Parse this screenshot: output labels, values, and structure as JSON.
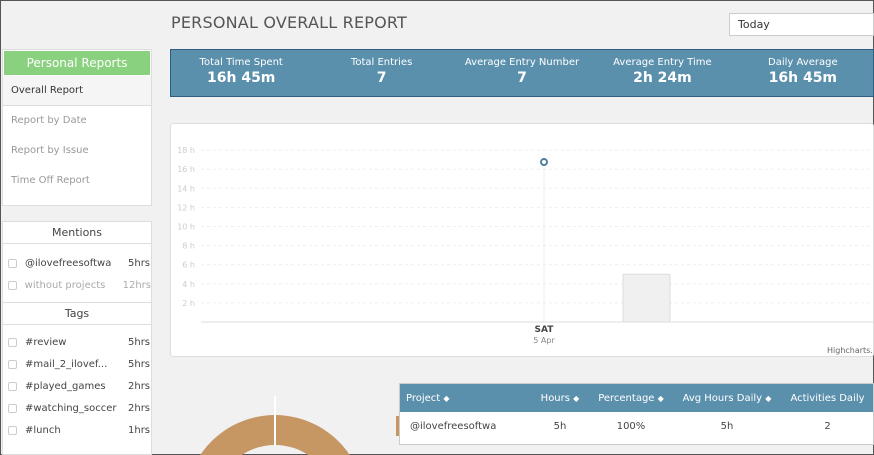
{
  "header": {
    "title": "PERSONAL OVERALL REPORT",
    "date_select": "Today"
  },
  "sidebar": {
    "heading": "Personal Reports",
    "items": [
      {
        "label": "Overall Report",
        "active": true
      },
      {
        "label": "Report by Date"
      },
      {
        "label": "Report by Issue"
      },
      {
        "label": "Time Off Report"
      }
    ]
  },
  "mentions": {
    "heading": "Mentions",
    "items": [
      {
        "label": "@ilovefreesoftwa",
        "hours": "5hrs"
      },
      {
        "label": "without projects",
        "hours": "12hrs"
      }
    ]
  },
  "tags": {
    "heading": "Tags",
    "items": [
      {
        "label": "#review",
        "hours": "5hrs"
      },
      {
        "label": "#mail_2_ilovef...",
        "hours": "5hrs"
      },
      {
        "label": "#played_games",
        "hours": "2hrs"
      },
      {
        "label": "#watching_soccer",
        "hours": "2hrs"
      },
      {
        "label": "#lunch",
        "hours": "1hrs"
      }
    ]
  },
  "stats": [
    {
      "label": "Total Time Spent",
      "value": "16h 45m"
    },
    {
      "label": "Total Entries",
      "value": "7"
    },
    {
      "label": "Average Entry Number",
      "value": "7"
    },
    {
      "label": "Average Entry Time",
      "value": "2h 24m"
    },
    {
      "label": "Daily Average",
      "value": "16h 45m"
    }
  ],
  "chart_data": {
    "type": "line",
    "yticks": [
      "2 h",
      "4 h",
      "6 h",
      "8 h",
      "10 h",
      "12 h",
      "14 h",
      "16 h",
      "18 h"
    ],
    "ylim": [
      0,
      18
    ],
    "categories": [
      {
        "day": "SAT",
        "date": "5 Apr"
      }
    ],
    "line_values": [
      16.75
    ],
    "bar_value": 5,
    "credit": "Highcharts.com",
    "colors": {
      "line": "#4f7fa0",
      "bar": "#f0f0f0"
    }
  },
  "table": {
    "headers": [
      "Project",
      "Hours",
      "Percentage",
      "Avg Hours Daily",
      "Activities Daily"
    ],
    "rows": [
      [
        "@ilovefreesoftwa",
        "5h",
        "100%",
        "5h",
        "2"
      ]
    ]
  },
  "colors": {
    "accent": "#5b90ad",
    "green": "#8ad17f",
    "donut": "#c69663"
  }
}
